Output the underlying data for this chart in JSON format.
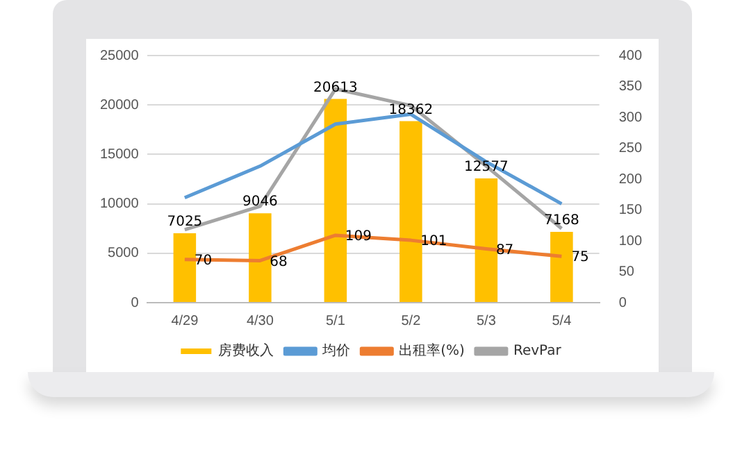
{
  "chart_data": {
    "type": "bar",
    "categories": [
      "4/29",
      "4/30",
      "5/1",
      "5/2",
      "5/3",
      "5/4"
    ],
    "series": [
      {
        "name": "房费收入",
        "color": "#ffc000",
        "values": [
          7025,
          9046,
          20613,
          18362,
          12577,
          7168
        ],
        "value_labels": [
          "7025",
          "9046",
          "20613",
          "18362",
          "12577",
          "7168"
        ]
      },
      {
        "name": "均价",
        "type": "line",
        "axis": "y2",
        "color": "#5b9bd5",
        "values": [
          170,
          221,
          289,
          305,
          228,
          160
        ]
      },
      {
        "name": "出租率(%)",
        "type": "line",
        "axis": "y2",
        "color": "#ed7d31",
        "values": [
          70,
          68,
          109,
          101,
          87,
          75
        ],
        "value_labels": [
          "70",
          "68",
          "109",
          "101",
          "87",
          "75"
        ]
      },
      {
        "name": "RevPar",
        "type": "line",
        "axis": "y2",
        "color": "#a5a5a5",
        "values": [
          118,
          156,
          346,
          319,
          221,
          120
        ]
      }
    ],
    "ylim": [
      0,
      25000
    ],
    "yticks": [
      0,
      5000,
      10000,
      15000,
      20000,
      25000
    ],
    "y2lim": [
      0,
      400
    ],
    "y2ticks": [
      0,
      50,
      100,
      150,
      200,
      250,
      300,
      350,
      400
    ],
    "grid": "y",
    "legend": "bottom",
    "marker": "none"
  }
}
